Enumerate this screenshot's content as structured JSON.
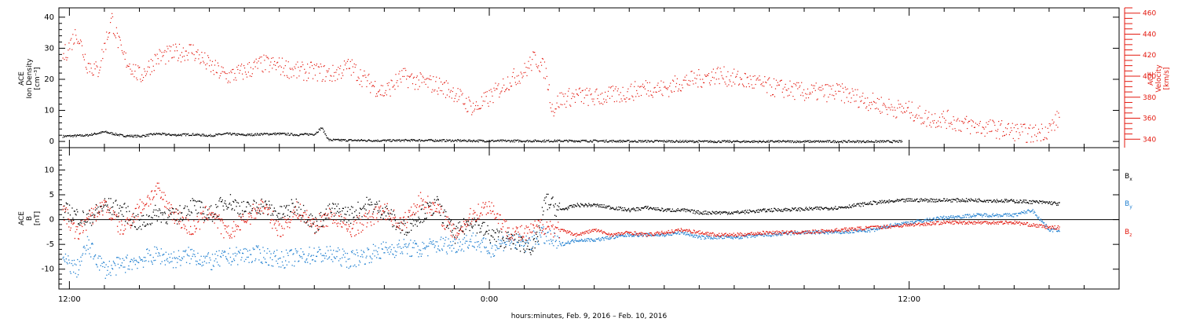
{
  "chart_data": [
    {
      "type": "scatter",
      "panel": "ion-density-velocity",
      "ylabel_left": [
        "ACE",
        "Ion Density",
        "[cm⁻³]"
      ],
      "ylabel_right": [
        "ACE",
        "Velocity",
        "[km/s]"
      ],
      "ylim_left": [
        -2,
        43
      ],
      "yticks_left": [
        0,
        10,
        20,
        30,
        40
      ],
      "ylim_right": [
        332,
        465
      ],
      "yticks_right": [
        340,
        360,
        380,
        400,
        420,
        440,
        460
      ],
      "x_range_hours": [
        11.8,
        35.9
      ],
      "series": [
        {
          "name": "",
          "axis": "left",
          "color": "#000000",
          "points": [
            [
              11.8,
              1.8
            ],
            [
              12.5,
              2.1
            ],
            [
              13.0,
              3.2
            ],
            [
              13.5,
              2.0
            ],
            [
              14.0,
              1.8
            ],
            [
              14.5,
              2.6
            ],
            [
              15.0,
              2.2
            ],
            [
              15.5,
              2.4
            ],
            [
              16.0,
              2.0
            ],
            [
              16.5,
              2.6
            ],
            [
              17.0,
              2.2
            ],
            [
              17.5,
              2.5
            ],
            [
              18.0,
              2.6
            ],
            [
              18.5,
              2.3
            ],
            [
              19.0,
              2.5
            ],
            [
              19.2,
              4.6
            ],
            [
              19.4,
              0.6
            ],
            [
              20.0,
              0.5
            ],
            [
              21.0,
              0.4
            ],
            [
              22.0,
              0.5
            ],
            [
              23.0,
              0.4
            ],
            [
              24.0,
              0.3
            ],
            [
              25.0,
              0.3
            ],
            [
              26.0,
              0.3
            ],
            [
              27.0,
              0.3
            ],
            [
              28.0,
              0.2
            ],
            [
              29.0,
              0.2
            ],
            [
              30.0,
              0.1
            ],
            [
              31.0,
              0.1
            ],
            [
              32.0,
              0.1
            ],
            [
              33.0,
              0.1
            ],
            [
              34.0,
              0.1
            ],
            [
              35.0,
              0.1
            ],
            [
              35.8,
              0.1
            ]
          ]
        },
        {
          "name": "",
          "axis": "right",
          "color": "#e3190f",
          "points": [
            [
              11.8,
              418
            ],
            [
              12.2,
              442
            ],
            [
              12.5,
              412
            ],
            [
              12.8,
              405
            ],
            [
              13.0,
              430
            ],
            [
              13.2,
              455
            ],
            [
              13.5,
              420
            ],
            [
              14.0,
              400
            ],
            [
              14.5,
              418
            ],
            [
              15.0,
              422
            ],
            [
              15.5,
              425
            ],
            [
              16.0,
              410
            ],
            [
              16.5,
              400
            ],
            [
              17.0,
              405
            ],
            [
              17.5,
              412
            ],
            [
              18.0,
              410
            ],
            [
              18.5,
              405
            ],
            [
              19.0,
              405
            ],
            [
              19.5,
              402
            ],
            [
              20.0,
              410
            ],
            [
              20.5,
              395
            ],
            [
              21.0,
              385
            ],
            [
              21.5,
              400
            ],
            [
              22.0,
              395
            ],
            [
              22.5,
              392
            ],
            [
              23.0,
              385
            ],
            [
              23.3,
              375
            ],
            [
              23.6,
              370
            ],
            [
              24.0,
              380
            ],
            [
              24.5,
              395
            ],
            [
              25.0,
              405
            ],
            [
              25.3,
              418
            ],
            [
              25.6,
              405
            ],
            [
              25.8,
              368
            ],
            [
              26.0,
              378
            ],
            [
              26.5,
              382
            ],
            [
              27.0,
              380
            ],
            [
              27.5,
              382
            ],
            [
              28.0,
              385
            ],
            [
              28.5,
              390
            ],
            [
              29.0,
              388
            ],
            [
              29.5,
              395
            ],
            [
              30.0,
              398
            ],
            [
              30.5,
              402
            ],
            [
              31.0,
              398
            ],
            [
              31.5,
              395
            ],
            [
              32.0,
              390
            ],
            [
              32.5,
              388
            ],
            [
              33.0,
              385
            ],
            [
              33.5,
              385
            ],
            [
              34.0,
              385
            ],
            [
              34.5,
              380
            ],
            [
              35.0,
              375
            ],
            [
              35.5,
              370
            ],
            [
              36.0,
              368
            ],
            [
              36.5,
              360
            ],
            [
              37.0,
              360
            ],
            [
              37.5,
              355
            ],
            [
              38.0,
              352
            ],
            [
              38.5,
              350
            ],
            [
              39.0,
              348
            ],
            [
              39.5,
              345
            ],
            [
              40.0,
              350
            ],
            [
              40.3,
              362
            ]
          ]
        }
      ]
    },
    {
      "type": "scatter",
      "panel": "magnetic-field",
      "ylabel_left": [
        "ACE",
        "B",
        "[nT]"
      ],
      "ylim": [
        -14,
        14.5
      ],
      "yticks": [
        -10,
        -5,
        0,
        5,
        10
      ],
      "zero_line": true,
      "legend": [
        {
          "label": "B",
          "sub": "x",
          "color": "#000000"
        },
        {
          "label": "B",
          "sub": "y",
          "color": "#1f7fd0"
        },
        {
          "label": "B",
          "sub": "z",
          "color": "#e3190f"
        }
      ],
      "series": [
        {
          "name": "Bx",
          "color": "#000000",
          "points": [
            [
              11.8,
              2.0
            ],
            [
              12.5,
              0.0
            ],
            [
              13.0,
              3.0
            ],
            [
              13.5,
              2.0
            ],
            [
              14.0,
              -1.0
            ],
            [
              14.5,
              1.5
            ],
            [
              15.0,
              0.5
            ],
            [
              15.5,
              3.0
            ],
            [
              16.0,
              1.0
            ],
            [
              16.5,
              4.0
            ],
            [
              17.0,
              2.0
            ],
            [
              17.5,
              3.0
            ],
            [
              18.0,
              1.0
            ],
            [
              18.5,
              3.0
            ],
            [
              19.0,
              -1.0
            ],
            [
              19.5,
              2.0
            ],
            [
              20.0,
              1.0
            ],
            [
              20.5,
              3.0
            ],
            [
              21.0,
              2.0
            ],
            [
              21.5,
              -2.0
            ],
            [
              22.0,
              1.0
            ],
            [
              22.5,
              3.0
            ],
            [
              23.0,
              -3.0
            ],
            [
              23.5,
              0.0
            ],
            [
              24.0,
              -3.0
            ],
            [
              24.5,
              -4.0
            ],
            [
              25.0,
              -5.0
            ],
            [
              25.3,
              -5.5
            ],
            [
              25.6,
              4.0
            ],
            [
              26.0,
              2.0
            ],
            [
              26.5,
              3.0
            ],
            [
              27.0,
              3.0
            ],
            [
              27.5,
              2.5
            ],
            [
              28.0,
              2.0
            ],
            [
              28.5,
              2.5
            ],
            [
              29.0,
              2.0
            ],
            [
              29.5,
              2.0
            ],
            [
              30.0,
              1.5
            ],
            [
              31.0,
              1.5
            ],
            [
              32.0,
              2.0
            ],
            [
              33.0,
              2.2
            ],
            [
              34.0,
              2.5
            ],
            [
              35.0,
              3.5
            ],
            [
              36.0,
              4.0
            ],
            [
              37.0,
              4.0
            ],
            [
              38.0,
              4.0
            ],
            [
              39.0,
              3.8
            ],
            [
              40.0,
              3.5
            ],
            [
              40.3,
              3.2
            ]
          ]
        },
        {
          "name": "By",
          "color": "#1f7fd0",
          "points": [
            [
              11.8,
              -8.0
            ],
            [
              12.2,
              -10.0
            ],
            [
              12.5,
              -5.0
            ],
            [
              12.8,
              -8.0
            ],
            [
              13.0,
              -10.0
            ],
            [
              13.5,
              -9.0
            ],
            [
              14.0,
              -8.0
            ],
            [
              14.5,
              -7.0
            ],
            [
              15.0,
              -8.0
            ],
            [
              15.5,
              -7.0
            ],
            [
              16.0,
              -8.5
            ],
            [
              16.5,
              -7.5
            ],
            [
              17.0,
              -7.0
            ],
            [
              17.5,
              -7.0
            ],
            [
              18.0,
              -8.0
            ],
            [
              18.5,
              -7.5
            ],
            [
              19.0,
              -7.0
            ],
            [
              19.5,
              -7.0
            ],
            [
              20.0,
              -8.0
            ],
            [
              20.5,
              -7.0
            ],
            [
              21.0,
              -6.0
            ],
            [
              21.5,
              -5.5
            ],
            [
              22.0,
              -6.0
            ],
            [
              22.5,
              -5.0
            ],
            [
              23.0,
              -5.0
            ],
            [
              23.5,
              -4.0
            ],
            [
              24.0,
              -6.0
            ],
            [
              24.5,
              -4.0
            ],
            [
              25.0,
              -5.0
            ],
            [
              25.5,
              -3.0
            ],
            [
              26.0,
              -5.0
            ],
            [
              26.5,
              -4.0
            ],
            [
              27.0,
              -4.0
            ],
            [
              27.5,
              -3.5
            ],
            [
              28.0,
              -3.0
            ],
            [
              28.5,
              -3.0
            ],
            [
              29.0,
              -3.0
            ],
            [
              29.5,
              -2.5
            ],
            [
              30.0,
              -3.5
            ],
            [
              30.5,
              -3.5
            ],
            [
              31.0,
              -3.5
            ],
            [
              32.0,
              -3.0
            ],
            [
              33.0,
              -2.5
            ],
            [
              34.0,
              -2.5
            ],
            [
              35.0,
              -2.0
            ],
            [
              35.5,
              -1.0
            ],
            [
              36.0,
              -0.5
            ],
            [
              37.0,
              0.5
            ],
            [
              38.0,
              1.0
            ],
            [
              39.0,
              1.0
            ],
            [
              39.5,
              2.0
            ],
            [
              40.0,
              -2.0
            ],
            [
              40.3,
              -2.0
            ]
          ]
        },
        {
          "name": "Bz",
          "color": "#e3190f",
          "points": [
            [
              11.8,
              2.0
            ],
            [
              12.2,
              -3.0
            ],
            [
              12.5,
              0.0
            ],
            [
              13.0,
              3.0
            ],
            [
              13.5,
              -2.0
            ],
            [
              14.0,
              2.5
            ],
            [
              14.5,
              6.0
            ],
            [
              15.0,
              1.0
            ],
            [
              15.5,
              -2.0
            ],
            [
              16.0,
              2.0
            ],
            [
              16.5,
              -3.0
            ],
            [
              17.0,
              0.0
            ],
            [
              17.5,
              3.0
            ],
            [
              18.0,
              -2.0
            ],
            [
              18.5,
              2.0
            ],
            [
              19.0,
              -1.0
            ],
            [
              19.5,
              1.0
            ],
            [
              20.0,
              -2.0
            ],
            [
              20.5,
              0.0
            ],
            [
              21.0,
              2.0
            ],
            [
              21.5,
              -1.0
            ],
            [
              22.0,
              4.0
            ],
            [
              22.5,
              2.0
            ],
            [
              23.0,
              -3.0
            ],
            [
              23.5,
              1.0
            ],
            [
              24.0,
              3.0
            ],
            [
              24.5,
              -2.0
            ],
            [
              25.0,
              -3.0
            ],
            [
              25.5,
              -1.0
            ],
            [
              26.0,
              -2.0
            ],
            [
              26.5,
              -3.0
            ],
            [
              27.0,
              -2.0
            ],
            [
              27.5,
              -3.0
            ],
            [
              28.0,
              -2.5
            ],
            [
              28.5,
              -3.0
            ],
            [
              29.0,
              -2.5
            ],
            [
              29.5,
              -2.0
            ],
            [
              30.0,
              -2.5
            ],
            [
              30.5,
              -3.0
            ],
            [
              31.0,
              -3.0
            ],
            [
              32.0,
              -2.5
            ],
            [
              33.0,
              -2.5
            ],
            [
              34.0,
              -2.0
            ],
            [
              35.0,
              -1.5
            ],
            [
              36.0,
              -1.0
            ],
            [
              37.0,
              -0.5
            ],
            [
              38.0,
              -0.5
            ],
            [
              39.0,
              -0.5
            ],
            [
              39.5,
              -1.0
            ],
            [
              40.0,
              -1.5
            ],
            [
              40.3,
              -1.5
            ]
          ]
        }
      ]
    }
  ],
  "x_axis": {
    "title": "hours:minutes, Feb.  9, 2016 – Feb. 10, 2016",
    "tick_labels": [
      {
        "hour": 12,
        "label": "12:00"
      },
      {
        "hour": 24,
        "label": "0:00"
      },
      {
        "hour": 36,
        "label": "12:00"
      }
    ],
    "range_hours": [
      11.7,
      42.0
    ]
  }
}
